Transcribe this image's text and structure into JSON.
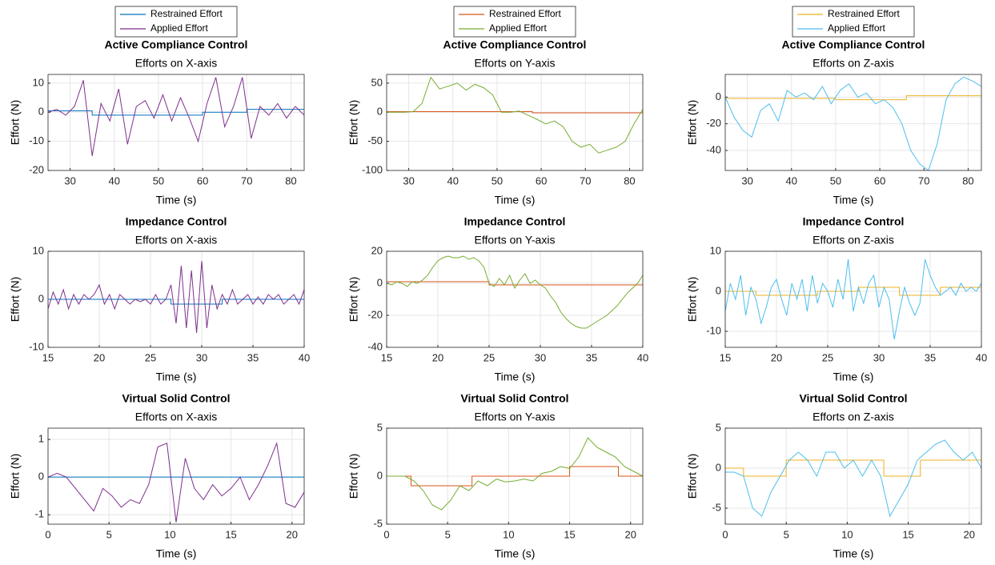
{
  "chart_data": [
    {
      "type": "line",
      "title": "Active Compliance Control",
      "subtitle": "Efforts on X-axis",
      "x_label": "Time (s)",
      "y_label": "Effort (N)",
      "legend": true,
      "grid": true,
      "xlim": [
        25,
        83
      ],
      "xticks": [
        30,
        40,
        50,
        60,
        70,
        80
      ],
      "ylim": [
        -20,
        13
      ],
      "yticks": [
        -20,
        -10,
        0,
        10
      ],
      "series": [
        {
          "name": "Restrained Effort",
          "color": "#0072BD",
          "x": [
            25,
            35,
            35,
            60,
            60,
            70,
            70,
            83
          ],
          "values": [
            0.5,
            0.5,
            -1,
            -1,
            0,
            0,
            1,
            1
          ]
        },
        {
          "name": "Applied Effort",
          "color": "#7E2F8E",
          "x": [
            25,
            27,
            29,
            31,
            33,
            35,
            37,
            39,
            41,
            43,
            45,
            47,
            49,
            51,
            53,
            55,
            57,
            59,
            61,
            63,
            65,
            67,
            69,
            71,
            73,
            75,
            77,
            79,
            81,
            83
          ],
          "values": [
            0,
            1,
            -1,
            2,
            11,
            -15,
            3,
            -3,
            8,
            -11,
            2,
            4,
            -2,
            6,
            -3,
            5,
            -2,
            -10,
            3,
            12,
            -5,
            2,
            12,
            -9,
            2,
            -1,
            3,
            -2,
            2,
            -1
          ]
        }
      ]
    },
    {
      "type": "line",
      "title": "Active Compliance Control",
      "subtitle": "Efforts on Y-axis",
      "x_label": "Time (s)",
      "y_label": "Effort (N)",
      "legend": true,
      "grid": true,
      "xlim": [
        25,
        83
      ],
      "xticks": [
        30,
        40,
        50,
        60,
        70,
        80
      ],
      "ylim": [
        -100,
        65
      ],
      "yticks": [
        -100,
        -50,
        0,
        50
      ],
      "series": [
        {
          "name": "Restrained Effort",
          "color": "#D95319",
          "x": [
            25,
            58,
            58,
            83
          ],
          "values": [
            1,
            1,
            -1,
            -1
          ]
        },
        {
          "name": "Applied Effort",
          "color": "#77AC30",
          "x": [
            25,
            27,
            29,
            31,
            33,
            35,
            37,
            39,
            41,
            43,
            45,
            47,
            49,
            51,
            53,
            55,
            57,
            59,
            61,
            63,
            65,
            67,
            69,
            71,
            73,
            75,
            77,
            79,
            81,
            83
          ],
          "values": [
            0,
            0,
            0,
            1,
            15,
            60,
            40,
            45,
            50,
            38,
            48,
            42,
            30,
            0,
            0,
            2,
            -5,
            -12,
            -20,
            -15,
            -25,
            -50,
            -60,
            -55,
            -70,
            -65,
            -60,
            -50,
            -20,
            5
          ]
        }
      ]
    },
    {
      "type": "line",
      "title": "Active Compliance Control",
      "subtitle": "Efforts on Z-axis",
      "x_label": "Time (s)",
      "y_label": "Effort (N)",
      "legend": true,
      "grid": true,
      "xlim": [
        25,
        83
      ],
      "xticks": [
        30,
        40,
        50,
        60,
        70,
        80
      ],
      "ylim": [
        -55,
        17
      ],
      "yticks": [
        -40,
        -20,
        0
      ],
      "series": [
        {
          "name": "Restrained Effort",
          "color": "#EDB120",
          "x": [
            25,
            50,
            50,
            66,
            66,
            83
          ],
          "values": [
            -1,
            -1,
            -2,
            -2,
            1,
            1
          ]
        },
        {
          "name": "Applied Effort",
          "color": "#4DBEEE",
          "x": [
            25,
            27,
            29,
            31,
            33,
            35,
            37,
            39,
            41,
            43,
            45,
            47,
            49,
            51,
            53,
            55,
            57,
            59,
            61,
            63,
            65,
            67,
            69,
            71,
            73,
            75,
            77,
            79,
            81,
            83
          ],
          "values": [
            0,
            -15,
            -25,
            -30,
            -10,
            -5,
            -18,
            5,
            0,
            3,
            -2,
            8,
            -5,
            5,
            10,
            0,
            3,
            -5,
            -2,
            -8,
            -20,
            -40,
            -50,
            -55,
            -35,
            -2,
            10,
            15,
            12,
            8
          ]
        }
      ]
    },
    {
      "type": "line",
      "title": "Impedance Control",
      "subtitle": "Efforts on X-axis",
      "x_label": "Time (s)",
      "y_label": "Effort (N)",
      "legend": false,
      "grid": true,
      "xlim": [
        15,
        40
      ],
      "xticks": [
        15,
        20,
        25,
        30,
        35,
        40
      ],
      "ylim": [
        -10,
        10
      ],
      "yticks": [
        -10,
        0,
        10
      ],
      "series": [
        {
          "color": "#0072BD",
          "x": [
            15,
            27,
            27,
            32,
            32,
            40
          ],
          "values": [
            0,
            0,
            -1,
            -1,
            0,
            0
          ]
        },
        {
          "color": "#7E2F8E",
          "x": [
            15,
            15.5,
            16,
            16.5,
            17,
            17.5,
            18,
            18.5,
            19,
            19.5,
            20,
            20.5,
            21,
            21.5,
            22,
            22.5,
            23,
            23.5,
            24,
            24.5,
            25,
            25.5,
            26,
            26.5,
            27,
            27.5,
            28,
            28.5,
            29,
            29.5,
            30,
            30.5,
            31,
            31.5,
            32,
            32.5,
            33,
            33.5,
            34,
            34.5,
            35,
            35.5,
            36,
            36.5,
            37,
            37.5,
            38,
            38.5,
            39,
            39.5,
            40
          ],
          "values": [
            -2,
            1.5,
            -1,
            2,
            -2,
            1,
            -1,
            1,
            0,
            1,
            3,
            -1,
            1,
            -2,
            1,
            0,
            -1,
            0,
            -0.5,
            0,
            -1,
            1,
            -1,
            0,
            3,
            -5,
            7,
            -6,
            6,
            -7,
            8,
            -6,
            3,
            -2,
            1,
            -1,
            2,
            -1,
            0,
            1,
            -1,
            0.5,
            -1,
            1,
            0,
            1,
            -1,
            0,
            1,
            -1,
            2
          ]
        }
      ]
    },
    {
      "type": "line",
      "title": "Impedance Control",
      "subtitle": "Efforts on Y-axis",
      "x_label": "Time (s)",
      "y_label": "Effort (N)",
      "legend": false,
      "grid": true,
      "xlim": [
        15,
        40
      ],
      "xticks": [
        15,
        20,
        25,
        30,
        35,
        40
      ],
      "ylim": [
        -40,
        20
      ],
      "yticks": [
        -40,
        -20,
        0,
        20
      ],
      "series": [
        {
          "color": "#D95319",
          "x": [
            15,
            25,
            25,
            40
          ],
          "values": [
            1,
            1,
            -1,
            -1
          ]
        },
        {
          "color": "#77AC30",
          "x": [
            15,
            15.5,
            16,
            16.5,
            17,
            17.5,
            18,
            18.5,
            19,
            19.5,
            20,
            20.5,
            21,
            21.5,
            22,
            22.5,
            23,
            23.5,
            24,
            24.5,
            25,
            25.5,
            26,
            26.5,
            27,
            27.5,
            28,
            28.5,
            29,
            29.5,
            30,
            30.5,
            31,
            31.5,
            32,
            32.5,
            33,
            33.5,
            34,
            34.5,
            35,
            35.5,
            36,
            36.5,
            37,
            37.5,
            38,
            38.5,
            39,
            39.5,
            40
          ],
          "values": [
            0,
            -1,
            1,
            0,
            -2,
            1,
            0,
            2,
            5,
            10,
            14,
            16,
            17,
            16,
            16,
            17,
            15,
            16,
            14,
            10,
            0,
            -2,
            3,
            -1,
            5,
            -3,
            2,
            6,
            0,
            2,
            -1,
            -3,
            -8,
            -12,
            -18,
            -22,
            -25,
            -27,
            -28,
            -28,
            -26,
            -24,
            -22,
            -20,
            -17,
            -14,
            -10,
            -6,
            -3,
            0,
            5
          ]
        }
      ]
    },
    {
      "type": "line",
      "title": "Impedance Control",
      "subtitle": "Efforts on Z-axis",
      "x_label": "Time (s)",
      "y_label": "Effort (N)",
      "legend": false,
      "grid": true,
      "xlim": [
        15,
        40
      ],
      "xticks": [
        15,
        20,
        25,
        30,
        35,
        40
      ],
      "ylim": [
        -14,
        10
      ],
      "yticks": [
        -10,
        0,
        10
      ],
      "series": [
        {
          "color": "#EDB120",
          "x": [
            15,
            18,
            18,
            24,
            24,
            28,
            28,
            32,
            32,
            36,
            36,
            40
          ],
          "values": [
            0,
            0,
            -1,
            -1,
            0,
            0,
            1,
            1,
            -1,
            -1,
            1,
            1
          ]
        },
        {
          "color": "#4DBEEE",
          "x": [
            15,
            15.5,
            16,
            16.5,
            17,
            17.5,
            18,
            18.5,
            19,
            19.5,
            20,
            20.5,
            21,
            21.5,
            22,
            22.5,
            23,
            23.5,
            24,
            24.5,
            25,
            25.5,
            26,
            26.5,
            27,
            27.5,
            28,
            28.5,
            29,
            29.5,
            30,
            30.5,
            31,
            31.5,
            32,
            32.5,
            33,
            33.5,
            34,
            34.5,
            35,
            35.5,
            36,
            36.5,
            37,
            37.5,
            38,
            38.5,
            39,
            39.5,
            40
          ],
          "values": [
            -5,
            2,
            -2,
            4,
            -6,
            1,
            -2,
            -8,
            -4,
            1,
            3,
            -2,
            -6,
            2,
            -2,
            3,
            -5,
            4,
            -3,
            2,
            0,
            -4,
            3,
            -2,
            8,
            -5,
            1,
            -3,
            2,
            4,
            -4,
            1,
            -2,
            -12,
            -5,
            1,
            -3,
            -6,
            -3,
            8,
            4,
            1,
            -1,
            0,
            1,
            -1,
            2,
            0,
            1,
            0,
            2
          ]
        }
      ]
    },
    {
      "type": "line",
      "title": "Virtual Solid Control",
      "subtitle": "Efforts on X-axis",
      "x_label": "Time (s)",
      "y_label": "Effort (N)",
      "legend": false,
      "grid": true,
      "xlim": [
        0,
        21
      ],
      "xticks": [
        0,
        5,
        10,
        15,
        20
      ],
      "ylim": [
        -1.25,
        1.3
      ],
      "yticks": [
        -1,
        0,
        1
      ],
      "series": [
        {
          "color": "#0072BD",
          "x": [
            0,
            21
          ],
          "values": [
            0,
            0
          ]
        },
        {
          "color": "#7E2F8E",
          "x": [
            0,
            0.75,
            1.5,
            2.25,
            3,
            3.75,
            4.5,
            5.25,
            6,
            6.75,
            7.5,
            8.25,
            9,
            9.75,
            10.5,
            11.25,
            12,
            12.75,
            13.5,
            14.25,
            15,
            15.75,
            16.5,
            17.25,
            18,
            18.75,
            19.5,
            20.25,
            21
          ],
          "values": [
            0,
            0.1,
            0,
            -0.3,
            -0.6,
            -0.9,
            -0.3,
            -0.5,
            -0.8,
            -0.6,
            -0.7,
            -0.2,
            0.8,
            0.9,
            -1.2,
            0.5,
            -0.3,
            -0.6,
            -0.2,
            -0.5,
            -0.3,
            0,
            -0.6,
            -0.2,
            0.3,
            0.9,
            -0.7,
            -0.8,
            -0.4
          ]
        }
      ]
    },
    {
      "type": "line",
      "title": "Virtual Solid Control",
      "subtitle": "Efforts on Y-axis",
      "x_label": "Time (s)",
      "y_label": "Effort (N)",
      "legend": false,
      "grid": true,
      "xlim": [
        0,
        21
      ],
      "xticks": [
        0,
        5,
        10,
        15,
        20
      ],
      "ylim": [
        -5,
        5
      ],
      "yticks": [
        -5,
        0,
        5
      ],
      "series": [
        {
          "color": "#D95319",
          "x": [
            0,
            2,
            2,
            7,
            7,
            15,
            15,
            19,
            19,
            21
          ],
          "values": [
            0,
            0,
            -1,
            -1,
            0,
            0,
            1,
            1,
            0,
            0
          ]
        },
        {
          "color": "#77AC30",
          "x": [
            0,
            0.75,
            1.5,
            2.25,
            3,
            3.75,
            4.5,
            5.25,
            6,
            6.75,
            7.5,
            8.25,
            9,
            9.75,
            10.5,
            11.25,
            12,
            12.75,
            13.5,
            14.25,
            15,
            15.75,
            16.5,
            17.25,
            18,
            18.75,
            19.5,
            20.25,
            21
          ],
          "values": [
            0,
            0,
            0,
            -0.5,
            -1.5,
            -3,
            -3.5,
            -2.5,
            -1,
            -1.5,
            -0.5,
            -1,
            -0.3,
            -0.6,
            -0.5,
            -0.3,
            -0.5,
            0.3,
            0.5,
            1,
            0.8,
            2,
            4,
            3,
            2.5,
            2,
            1,
            0.5,
            0
          ]
        }
      ]
    },
    {
      "type": "line",
      "title": "Virtual Solid Control",
      "subtitle": "Efforts on Z-axis",
      "x_label": "Time (s)",
      "y_label": "Effort (N)",
      "legend": false,
      "grid": true,
      "xlim": [
        0,
        21
      ],
      "xticks": [
        0,
        5,
        10,
        15,
        20
      ],
      "ylim": [
        -7,
        5
      ],
      "yticks": [
        -5,
        0,
        5
      ],
      "series": [
        {
          "color": "#EDB120",
          "x": [
            0,
            1.5,
            1.5,
            5,
            5,
            13,
            13,
            16,
            16,
            21
          ],
          "values": [
            0,
            0,
            -1,
            -1,
            1,
            1,
            -1,
            -1,
            1,
            1
          ]
        },
        {
          "color": "#4DBEEE",
          "x": [
            0,
            0.75,
            1.5,
            2.25,
            3,
            3.75,
            4.5,
            5.25,
            6,
            6.75,
            7.5,
            8.25,
            9,
            9.75,
            10.5,
            11.25,
            12,
            12.75,
            13.5,
            14.25,
            15,
            15.75,
            16.5,
            17.25,
            18,
            18.75,
            19.5,
            20.25,
            21
          ],
          "values": [
            -0.5,
            -0.5,
            -1,
            -5,
            -6,
            -3,
            -1,
            1,
            2,
            1,
            -1,
            2,
            2,
            0,
            1,
            -1,
            1,
            -1,
            -6,
            -4,
            -2,
            1,
            2,
            3,
            3.5,
            2,
            1,
            2,
            0
          ]
        }
      ]
    }
  ]
}
